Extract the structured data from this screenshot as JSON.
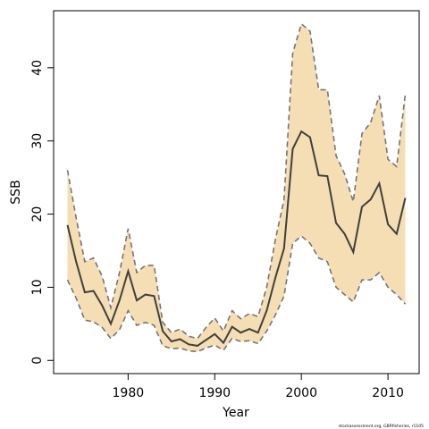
{
  "chart_data": {
    "type": "line",
    "title": "",
    "xlabel": "Year",
    "ylabel": "SSB",
    "xlim": [
      1971.4,
      2013.6
    ],
    "ylim": [
      -1.8,
      47.8
    ],
    "x_ticks": [
      1980,
      1990,
      2000,
      2010
    ],
    "y_ticks": [
      0,
      10,
      20,
      30,
      40
    ],
    "grid": false,
    "legend": "none",
    "colors": {
      "band": "#f5deb3",
      "bound_line": "#757575",
      "estimate_line": "#3f3f3f"
    },
    "series": [
      {
        "role": "estimate",
        "x": [
          1973,
          1974,
          1975,
          1976,
          1977,
          1978,
          1979,
          1980,
          1981,
          1982,
          1983,
          1984,
          1985,
          1986,
          1987,
          1988,
          1989,
          1990,
          1991,
          1992,
          1993,
          1994,
          1995,
          1996,
          1997,
          1998,
          1999,
          2000,
          2001,
          2002,
          2003,
          2004,
          2005,
          2006,
          2007,
          2008,
          2009,
          2010,
          2011,
          2012
        ],
        "values": [
          18.5,
          13.5,
          9.3,
          9.5,
          7.5,
          5.0,
          8.2,
          12.2,
          8.2,
          9.0,
          8.8,
          4.0,
          2.6,
          2.9,
          2.2,
          2.0,
          2.8,
          3.6,
          2.4,
          4.6,
          3.8,
          4.3,
          3.8,
          6.8,
          11.3,
          15.3,
          28.9,
          31.3,
          30.5,
          25.3,
          25.2,
          18.8,
          17.3,
          14.8,
          21.0,
          22.0,
          24.2,
          18.6,
          17.3,
          22.2
        ]
      },
      {
        "role": "upper",
        "x": [
          1973,
          1974,
          1975,
          1976,
          1977,
          1978,
          1979,
          1980,
          1981,
          1982,
          1983,
          1984,
          1985,
          1986,
          1987,
          1988,
          1989,
          1990,
          1991,
          1992,
          1993,
          1994,
          1995,
          1996,
          1997,
          1998,
          1999,
          2000,
          2001,
          2002,
          2003,
          2004,
          2005,
          2006,
          2007,
          2008,
          2009,
          2010,
          2011,
          2012
        ],
        "values": [
          26.0,
          19.5,
          13.5,
          14.0,
          11.5,
          7.2,
          12.0,
          18.0,
          12.0,
          13.0,
          13.0,
          5.2,
          3.8,
          4.3,
          3.3,
          3.0,
          4.5,
          5.8,
          4.0,
          6.8,
          5.7,
          6.4,
          6.0,
          10.0,
          16.5,
          22.0,
          42.0,
          46.0,
          45.0,
          37.0,
          37.0,
          28.0,
          25.5,
          21.7,
          31.0,
          32.5,
          36.2,
          27.5,
          26.5,
          36.4
        ]
      },
      {
        "role": "lower",
        "x": [
          1973,
          1974,
          1975,
          1976,
          1977,
          1978,
          1979,
          1980,
          1981,
          1982,
          1983,
          1984,
          1985,
          1986,
          1987,
          1988,
          1989,
          1990,
          1991,
          1992,
          1993,
          1994,
          1995,
          1996,
          1997,
          1998,
          1999,
          2000,
          2001,
          2002,
          2003,
          2004,
          2005,
          2006,
          2007,
          2008,
          2009,
          2010,
          2011,
          2012
        ],
        "values": [
          11.0,
          8.5,
          5.5,
          5.3,
          4.5,
          3.0,
          4.2,
          6.8,
          4.8,
          5.2,
          4.8,
          2.0,
          1.6,
          1.7,
          1.3,
          1.2,
          1.7,
          2.1,
          1.4,
          3.0,
          2.6,
          2.7,
          2.3,
          4.0,
          6.2,
          8.8,
          16.0,
          17.0,
          16.0,
          14.0,
          13.5,
          10.0,
          9.0,
          8.0,
          11.0,
          11.0,
          12.0,
          10.0,
          9.0,
          7.7
        ]
      }
    ],
    "footnote": "stockassessment.org, GBRfisheries, r1105"
  }
}
